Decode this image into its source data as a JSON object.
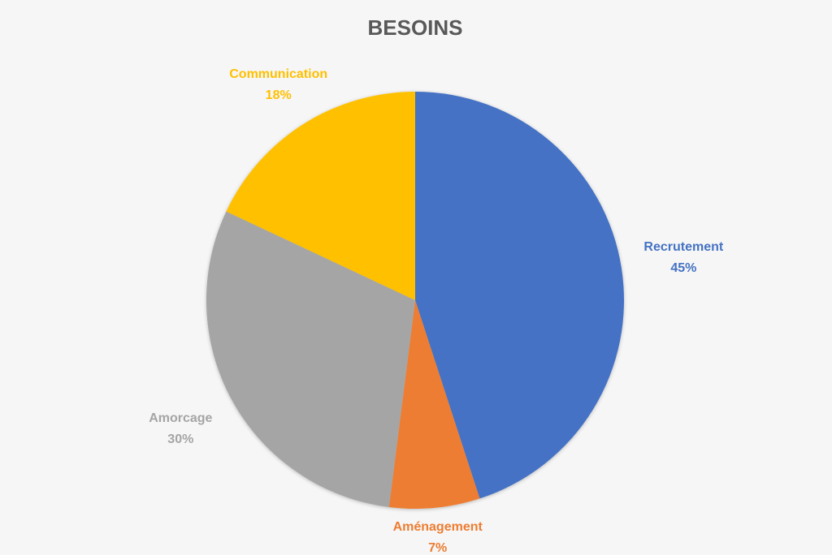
{
  "chart_data": {
    "type": "pie",
    "title": "BESOINS",
    "categories": [
      "Recrutement",
      "Aménagement",
      "Amorcage",
      "Communication"
    ],
    "values": [
      45,
      7,
      30,
      18
    ],
    "value_labels": [
      "45%",
      "7%",
      "30%",
      "18%"
    ],
    "colors": [
      "#4472c4",
      "#ed7d31",
      "#a5a5a5",
      "#ffc000"
    ]
  }
}
